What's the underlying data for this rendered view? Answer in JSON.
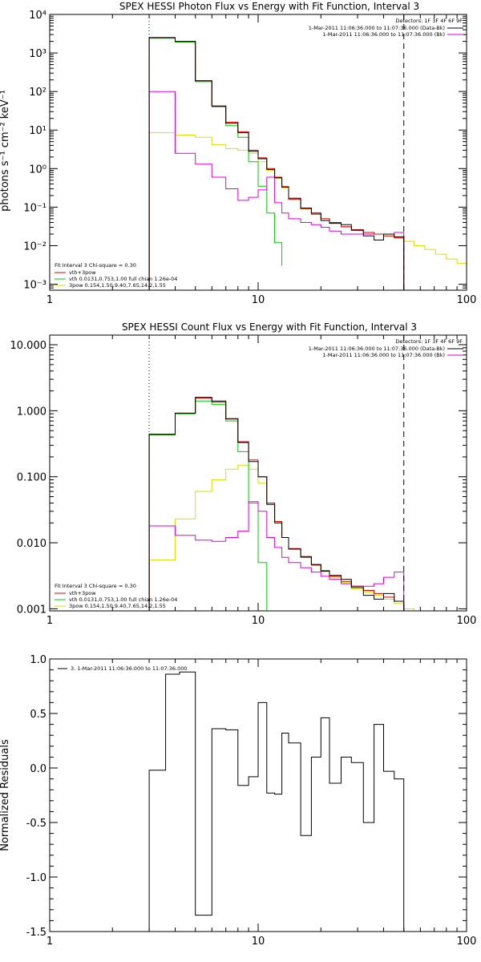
{
  "chart_data": [
    {
      "id": "photon",
      "type": "line",
      "title": "SPEX HESSI Photon Flux vs Energy with Fit Function, Interval 3",
      "ylabel": "photons s⁻¹ cm⁻² keV⁻¹",
      "xlabel": "",
      "xscale": "log",
      "yscale": "log",
      "xlim": [
        1,
        100
      ],
      "ylim": [
        0.0007,
        10000
      ],
      "xticks": [
        1,
        10,
        100
      ],
      "xtick_labels": [
        "1",
        "10",
        "100"
      ],
      "yticks": [
        0.001,
        0.01,
        0.1,
        1,
        10,
        100,
        1000,
        10000
      ],
      "ytick_labels": [
        "10⁻³",
        "10⁻²",
        "10⁻¹",
        "10⁰",
        "10¹",
        "10²",
        "10³",
        "10⁴"
      ],
      "vlines": [
        {
          "x": 3,
          "style": "dotted"
        },
        {
          "x": 50,
          "style": "dashed"
        }
      ],
      "top_legend": {
        "header": "Detectors: 1F 3F 4F 6F 9F",
        "entries": [
          {
            "label": "1-Mar-2011 11:06:36.000 to 11:07:36.000 (Data-Bk)",
            "color": "#000000"
          },
          {
            "label": "1-Mar-2011 11:06:36.000 to 11:07:36.000 (Bk)",
            "color": "#dd00dd"
          }
        ]
      },
      "fit_legend": {
        "header": "Fit Interval 3   Chi-square = 0.30",
        "entries": [
          {
            "label": "vth+3pow",
            "color": "#dd0000"
          },
          {
            "label": "vth 0.0131,0.753,1.00  full chian 1.26e-04",
            "color": "#00cc00"
          },
          {
            "label": "3pow 0.154,1.50,9.40,7.65,14.2,1.55",
            "color": "#dddd00"
          }
        ]
      },
      "series": [
        {
          "color": "#dddd00",
          "edges": [
            3,
            4,
            5,
            6,
            7,
            8,
            9,
            10,
            11,
            12,
            13,
            14,
            16,
            18,
            20,
            22,
            25,
            28,
            32,
            36,
            40,
            45,
            50,
            56,
            63,
            71,
            80,
            90,
            100
          ],
          "values": [
            8.5,
            7.4,
            6.5,
            4.2,
            3.3,
            3.0,
            2.5,
            1.5,
            0.9,
            0.55,
            0.32,
            0.16,
            0.09,
            0.065,
            0.05,
            0.038,
            0.03,
            0.025,
            0.022,
            0.02,
            0.018,
            0.016,
            0.013,
            0.01,
            0.008,
            0.006,
            0.0045,
            0.0035
          ]
        },
        {
          "color": "#00cc00",
          "edges": [
            3,
            4,
            5,
            6,
            7,
            8,
            9,
            10,
            11,
            12,
            13
          ],
          "values": [
            2400,
            1900,
            180,
            40,
            13,
            6.5,
            1.5,
            0.35,
            0.07,
            0.012,
            0.003
          ]
        },
        {
          "color": "#dd00dd",
          "edges": [
            3,
            4,
            5,
            6,
            7,
            8,
            9,
            10,
            11,
            12,
            13,
            14,
            16,
            18,
            20,
            22,
            25,
            28,
            32,
            36,
            40,
            45,
            50
          ],
          "values": [
            100,
            2.5,
            1.3,
            0.6,
            0.3,
            0.15,
            0.18,
            0.28,
            0.6,
            0.13,
            0.07,
            0.05,
            0.04,
            0.035,
            0.03,
            0.024,
            0.02,
            0.02,
            0.02,
            0.02,
            0.02,
            0.022
          ]
        },
        {
          "color": "#dd0000",
          "edges": [
            3,
            4,
            5,
            6,
            7,
            8,
            9,
            10,
            11,
            12,
            13,
            14,
            16,
            18,
            20,
            22,
            25,
            28,
            32,
            36,
            40,
            45,
            50
          ],
          "values": [
            2500,
            2000,
            190,
            42,
            16,
            9,
            3.0,
            1.9,
            1.0,
            0.6,
            0.34,
            0.16,
            0.092,
            0.066,
            0.05,
            0.04,
            0.031,
            0.026,
            0.022,
            0.02,
            0.018,
            0.016
          ]
        },
        {
          "color": "#000000",
          "edges": [
            3,
            4,
            5,
            6,
            7,
            8,
            9,
            10,
            11,
            12,
            13,
            14,
            16,
            18,
            20,
            22,
            25,
            28,
            32,
            36,
            40,
            45,
            50
          ],
          "values": [
            2500,
            2000,
            190,
            42,
            15,
            8.5,
            2.8,
            1.8,
            0.95,
            0.58,
            0.33,
            0.17,
            0.095,
            0.07,
            0.045,
            0.038,
            0.035,
            0.025,
            0.018,
            0.014,
            0.02,
            0.017
          ]
        }
      ]
    },
    {
      "id": "count",
      "type": "line",
      "title": "SPEX HESSI Count Flux vs Energy with Fit Function, Interval 3",
      "ylabel": "",
      "xlabel": "",
      "xscale": "log",
      "yscale": "log",
      "xlim": [
        1,
        100
      ],
      "ylim": [
        0.00093,
        14
      ],
      "xticks": [
        1,
        10,
        100
      ],
      "xtick_labels": [
        "1",
        "10",
        "100"
      ],
      "yticks": [
        0.001,
        0.01,
        0.1,
        1,
        10
      ],
      "ytick_labels": [
        "0.001",
        "0.010",
        "0.100",
        "1.000",
        "10.000"
      ],
      "vlines": [
        {
          "x": 3,
          "style": "dotted"
        },
        {
          "x": 50,
          "style": "dashed"
        }
      ],
      "top_legend": {
        "header": "Detectors: 1F 3F 4F 6F 9F",
        "entries": [
          {
            "label": "1-Mar-2011 11:06:36.000 to 11:07:36.000 (Data-Bk)",
            "color": "#000000"
          },
          {
            "label": "1-Mar-2011 11:06:36.000 to 11:07:36.000 (Bk)",
            "color": "#dd00dd"
          }
        ]
      },
      "fit_legend": {
        "header": "Fit Interval 3   Chi-square = 0.30",
        "entries": [
          {
            "label": "vth+3pow",
            "color": "#dd0000"
          },
          {
            "label": "vth 0.0131,0.753,1.00  full chian 1.26e-04",
            "color": "#00cc00"
          },
          {
            "label": "3pow 0.154,1.50,9.40,7.65,14.2,1.55",
            "color": "#dddd00"
          }
        ]
      },
      "series": [
        {
          "color": "#dddd00",
          "edges": [
            3,
            4,
            5,
            6,
            7,
            8,
            9,
            10,
            11,
            12,
            13,
            14,
            16,
            18,
            20,
            22,
            25,
            28,
            32,
            36,
            40,
            45,
            50,
            56,
            63,
            71
          ],
          "values": [
            0.0055,
            0.023,
            0.06,
            0.09,
            0.13,
            0.15,
            0.13,
            0.08,
            0.04,
            0.02,
            0.012,
            0.008,
            0.006,
            0.0045,
            0.0038,
            0.003,
            0.0025,
            0.002,
            0.0018,
            0.0016,
            0.0014,
            0.0012,
            0.001,
            0.0009,
            0.0008
          ]
        },
        {
          "color": "#00cc00",
          "edges": [
            3,
            4,
            5,
            6,
            7,
            8,
            9,
            10,
            11,
            12
          ],
          "values": [
            0.43,
            0.9,
            1.4,
            1.25,
            0.7,
            0.24,
            0.04,
            0.005,
            0.0008
          ]
        },
        {
          "color": "#dd00dd",
          "edges": [
            3,
            4,
            5,
            6,
            7,
            8,
            9,
            10,
            11,
            12,
            13,
            14,
            16,
            18,
            20,
            22,
            25,
            28,
            32,
            36,
            40,
            45,
            50
          ],
          "values": [
            0.018,
            0.013,
            0.011,
            0.0105,
            0.012,
            0.015,
            0.042,
            0.03,
            0.012,
            0.0085,
            0.006,
            0.005,
            0.0042,
            0.0036,
            0.0031,
            0.0028,
            0.0024,
            0.0022,
            0.0022,
            0.0024,
            0.003,
            0.0036
          ]
        },
        {
          "color": "#dd0000",
          "edges": [
            3,
            4,
            5,
            6,
            7,
            8,
            9,
            10,
            11,
            12,
            13,
            14,
            16,
            18,
            20,
            22,
            25,
            28,
            32,
            36,
            40,
            45,
            50
          ],
          "values": [
            0.44,
            0.92,
            1.55,
            1.35,
            0.75,
            0.34,
            0.18,
            0.1,
            0.04,
            0.021,
            0.012,
            0.0082,
            0.006,
            0.0046,
            0.0038,
            0.0031,
            0.0026,
            0.0022,
            0.0019,
            0.0017,
            0.0015,
            0.0013
          ]
        },
        {
          "color": "#000000",
          "edges": [
            3,
            4,
            5,
            6,
            7,
            8,
            9,
            10,
            11,
            12,
            13,
            14,
            16,
            18,
            20,
            22,
            25,
            28,
            32,
            36,
            40,
            45,
            50
          ],
          "values": [
            0.44,
            0.92,
            1.6,
            1.4,
            0.76,
            0.33,
            0.17,
            0.1,
            0.038,
            0.02,
            0.012,
            0.008,
            0.0062,
            0.0047,
            0.0037,
            0.0032,
            0.0028,
            0.0021,
            0.0016,
            0.0014,
            0.0017,
            0.0013
          ]
        }
      ]
    },
    {
      "id": "resid",
      "type": "line",
      "title": "",
      "ylabel": "Normalized Residuals",
      "xlabel": "",
      "xscale": "log",
      "yscale": "linear",
      "xlim": [
        1,
        100
      ],
      "ylim": [
        -1.5,
        1.0
      ],
      "xticks": [
        1,
        10,
        100
      ],
      "xtick_labels": [
        "1",
        "10",
        "100"
      ],
      "yticks": [
        -1.5,
        -1.0,
        -0.5,
        0.0,
        0.5,
        1.0
      ],
      "ytick_labels": [
        "-1.5",
        "-1.0",
        "-0.5",
        "0.0",
        "0.5",
        "1.0"
      ],
      "vlines": [],
      "top_legend": {
        "header": "",
        "entries": [
          {
            "label": "3. 1-Mar-2011 11:06:36.000 to 11:07:36.000",
            "color": "#000000"
          }
        ]
      },
      "fit_legend": {
        "header": "",
        "entries": []
      },
      "series": [
        {
          "color": "#000000",
          "edges": [
            3,
            3.6,
            4.2,
            5,
            6,
            7,
            8,
            9,
            10,
            11,
            12,
            13,
            14,
            16,
            18,
            20,
            22,
            25,
            28,
            32,
            36,
            40,
            45,
            50
          ],
          "values": [
            -0.02,
            0.86,
            0.88,
            -1.35,
            0.36,
            0.35,
            -0.16,
            -0.08,
            0.6,
            -0.23,
            -0.24,
            0.32,
            0.23,
            -0.62,
            0.1,
            0.46,
            -0.14,
            0.1,
            0.05,
            -0.5,
            0.4,
            -0.03,
            -0.1
          ],
          "drop_to_bottom": true
        }
      ]
    }
  ]
}
